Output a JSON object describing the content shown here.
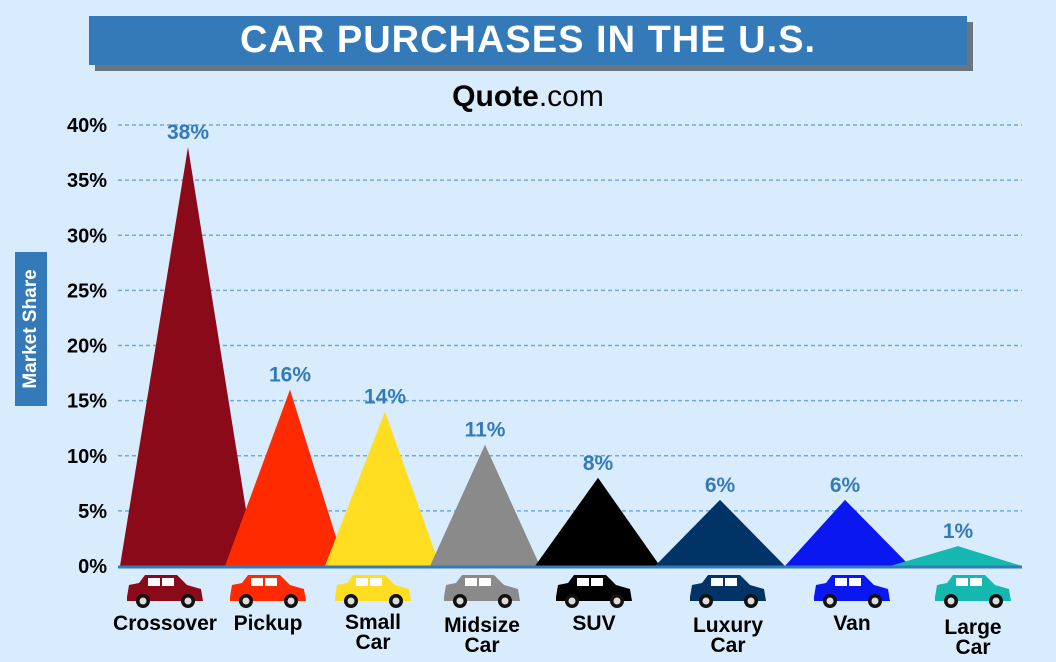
{
  "title": "CAR PURCHASES IN THE U.S.",
  "brand": {
    "bold": "Quote",
    "rest": ".com"
  },
  "chart_data": {
    "type": "bar",
    "title": "CAR PURCHASES IN THE U.S.",
    "xlabel": "",
    "ylabel": "Market Share",
    "ylim": [
      0,
      40
    ],
    "yticks": [
      "0%",
      "5%",
      "10%",
      "15%",
      "20%",
      "25%",
      "30%",
      "35%",
      "40%"
    ],
    "grid": true,
    "categories": [
      "Crossover",
      "Pickup",
      "Small Car",
      "Midsize Car",
      "SUV",
      "Luxury Car",
      "Van",
      "Large Car"
    ],
    "values": [
      38,
      16,
      14,
      11,
      8,
      6,
      6,
      1
    ],
    "labels": [
      "38%",
      "16%",
      "14%",
      "11%",
      "8%",
      "6%",
      "6%",
      "1%"
    ],
    "colors": [
      "#8b0a1a",
      "#ff2a00",
      "#ffde21",
      "#8a8a8a",
      "#000000",
      "#003366",
      "#0a17f0",
      "#14b8b0"
    ],
    "label_color": "#347ab8"
  }
}
